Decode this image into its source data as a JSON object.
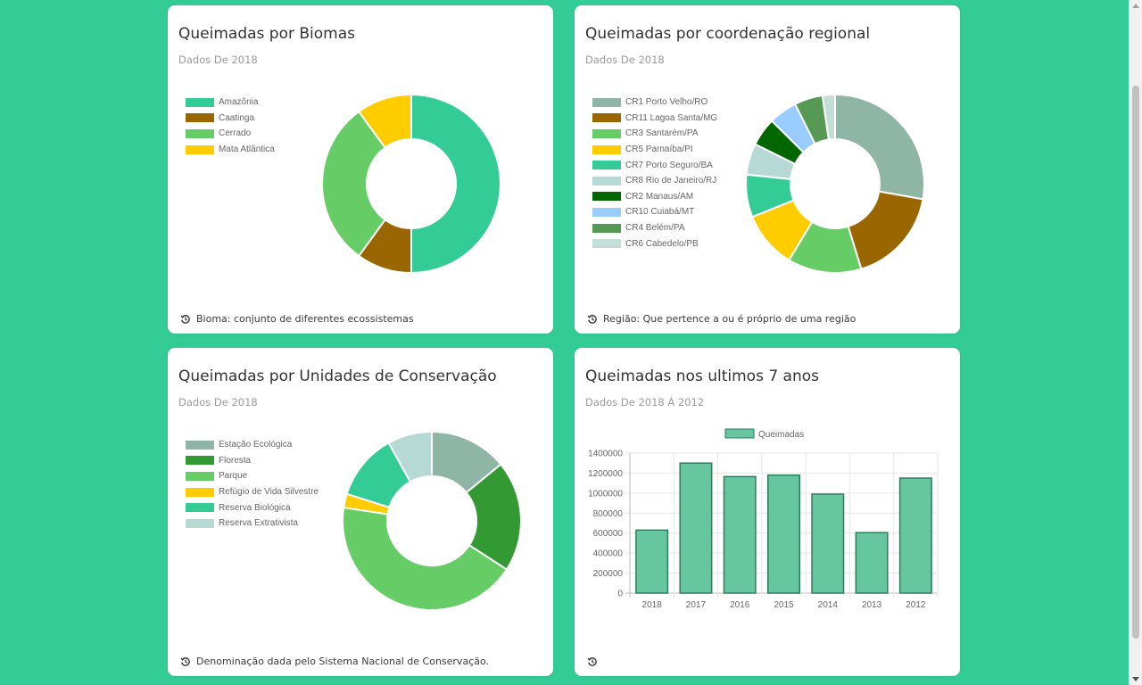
{
  "cards": [
    {
      "title": "Queimadas por Biomas",
      "subtitle": "Dados De 2018",
      "footer": "Bioma: conjunto de diferentes ecossistemas",
      "chart_data": {
        "type": "pie",
        "donut": true,
        "legend_position": "left",
        "labels": [
          "Amazônia",
          "Caatinga",
          "Cerrado",
          "Mata Atlântica"
        ],
        "values": [
          50,
          10,
          30,
          10
        ],
        "colors": [
          "#33cc96",
          "#996600",
          "#66cc66",
          "#ffcc00"
        ]
      }
    },
    {
      "title": "Queimadas por coordenação regional",
      "subtitle": "Dados De 2018",
      "footer": "Região: Que pertence a ou é próprio de uma região",
      "chart_data": {
        "type": "pie",
        "donut": true,
        "legend_position": "left",
        "labels": [
          "CR1 Porto Velho/RO",
          "CR11 Lagoa Santa/MG",
          "CR3 Santarém/PA",
          "CR5 Parnaíba/PI",
          "CR7 Porto Seguro/BA",
          "CR8 Rio de Janeiro/RJ",
          "CR2 Manaus/AM",
          "CR10 Cuiabá/MT",
          "CR4 Belém/PA",
          "CR6 Cabedelo/PB"
        ],
        "values": [
          27,
          17,
          13,
          10,
          7.5,
          5.5,
          5,
          5,
          5,
          2.2
        ],
        "colors": [
          "#8fb5a5",
          "#996600",
          "#66cc66",
          "#ffcc00",
          "#33cc96",
          "#b7d9d5",
          "#006600",
          "#99ccff",
          "#559955",
          "#c4ddd6"
        ]
      }
    },
    {
      "title": "Queimadas por Unidades de Conservação",
      "subtitle": "Dados De 2018",
      "footer": "Denominação dada pelo Sistema Nacional de Conservação.",
      "chart_data": {
        "type": "pie",
        "donut": true,
        "legend_position": "left",
        "labels": [
          "Estação Ecológica",
          "Floresta",
          "Parque",
          "Refúgio de Vida Silvestre",
          "Reserva Biológica",
          "Reserva Extrativista"
        ],
        "values": [
          14,
          20,
          43,
          2.5,
          12,
          8
        ],
        "colors": [
          "#8fb5a5",
          "#339933",
          "#66cc66",
          "#ffcc00",
          "#33cc96",
          "#b7d9d5"
        ]
      }
    },
    {
      "title": "Queimadas nos ultimos 7 anos",
      "subtitle": "Dados De 2018 Á 2012",
      "footer": "",
      "chart_data": {
        "type": "bar",
        "categories": [
          "2018",
          "2017",
          "2016",
          "2015",
          "2014",
          "2013",
          "2012"
        ],
        "series": [
          {
            "name": "Queimadas",
            "values": [
              630000,
              1300000,
              1165000,
              1180000,
              990000,
              605000,
              1150000
            ]
          }
        ],
        "ylim": [
          0,
          1400000
        ],
        "yticks": [
          0,
          200000,
          400000,
          600000,
          800000,
          1000000,
          1200000,
          1400000
        ],
        "grid": true,
        "legend_position": "top",
        "bar_color": "#66c6a0",
        "bar_border": "#2e7d5e"
      }
    }
  ]
}
